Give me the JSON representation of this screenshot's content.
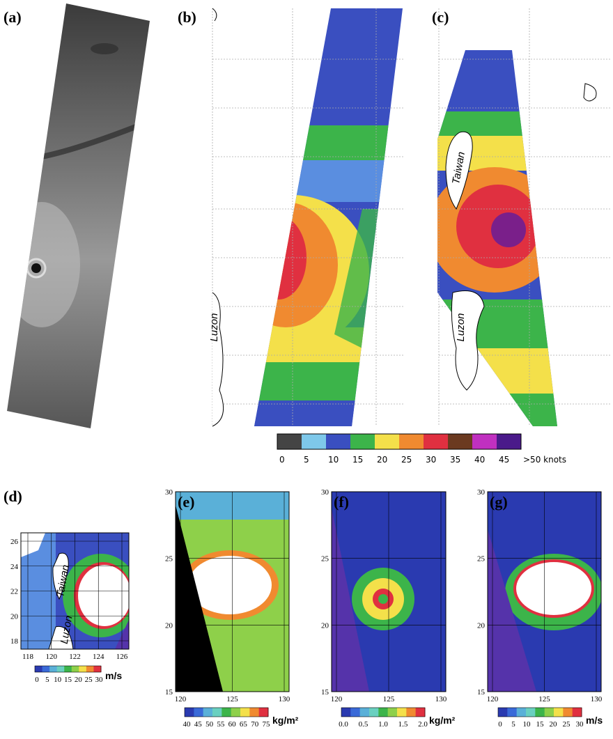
{
  "panels": [
    {
      "label": "(a)"
    },
    {
      "label": "(b)",
      "place_labels": [
        "Luzon"
      ]
    },
    {
      "label": "(c)",
      "place_labels": [
        "Taiwan",
        "Luzon"
      ]
    },
    {
      "label": "(d)",
      "place_labels": [
        "Taiwan",
        "Luzon"
      ],
      "yticks": [
        "26",
        "24",
        "22",
        "20",
        "18"
      ],
      "xticks": [
        "118",
        "120",
        "122",
        "124",
        "126"
      ],
      "colorbar": {
        "ticks": [
          "0",
          "5",
          "10",
          "15",
          "20",
          "25",
          "30"
        ],
        "unit": "m/s"
      }
    },
    {
      "label": "(e)",
      "yticks": [
        "30",
        "25",
        "20",
        "15"
      ],
      "xticks": [
        "120",
        "125",
        "130"
      ],
      "colorbar": {
        "ticks": [
          "40",
          "45",
          "50",
          "55",
          "60",
          "65",
          "70",
          "75"
        ],
        "unit": "kg/m²"
      }
    },
    {
      "label": "(f)",
      "yticks": [
        "30",
        "25",
        "20",
        "15"
      ],
      "xticks": [
        "120",
        "125",
        "130"
      ],
      "colorbar": {
        "ticks": [
          "0.0",
          "0.5",
          "1.0",
          "1.5",
          "2.0"
        ],
        "unit": "kg/m²"
      }
    },
    {
      "label": "(g)",
      "yticks": [
        "30",
        "25",
        "20",
        "15"
      ],
      "xticks": [
        "120",
        "125",
        "130"
      ],
      "colorbar": {
        "ticks": [
          "0",
          "5",
          "10",
          "15",
          "20",
          "25",
          "30"
        ],
        "unit": "m/s"
      }
    }
  ],
  "wind_colorbar": {
    "ticks": [
      "0",
      "5",
      "10",
      "15",
      "20",
      "25",
      "30",
      "35",
      "40",
      "45",
      ">50 knots"
    ]
  }
}
